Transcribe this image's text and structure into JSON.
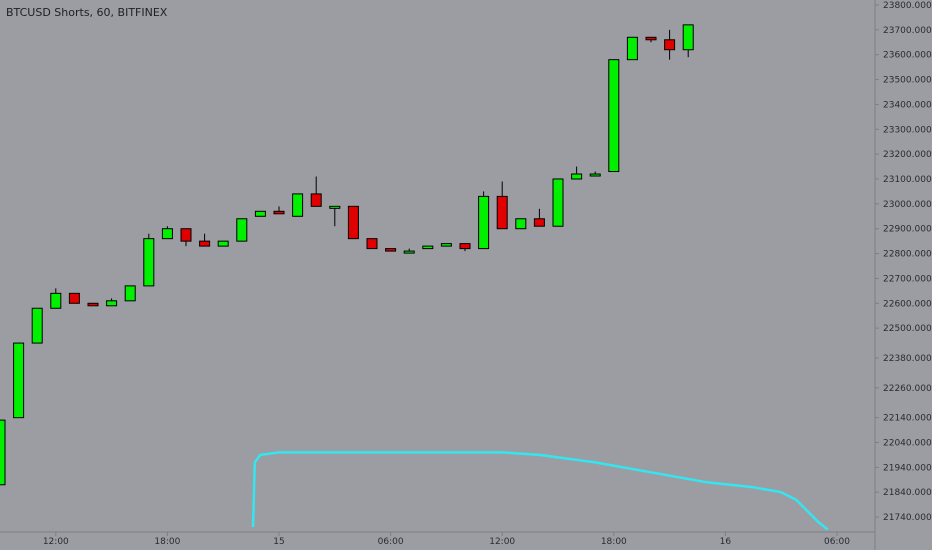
{
  "chart_title": "BTCUSD Shorts, 60, BITFINEX",
  "colors": {
    "background": "#9c9da3",
    "up": "#00f000",
    "down": "#e00000",
    "wick": "#000000",
    "line": "#33e6f0",
    "axis_text": "#2a2b30"
  },
  "chart_data": {
    "type": "candlestick",
    "title": "BTCUSD Shorts, 60, BITFINEX",
    "y_axis": {
      "position": "right",
      "ylim": [
        21680,
        23820
      ],
      "tick_labels": [
        "23800.0000",
        "23700.0000",
        "23600.0000",
        "23500.0000",
        "23400.0000",
        "23300.0000",
        "23200.0000",
        "23100.0000",
        "23000.0000",
        "22900.0000",
        "22800.0000",
        "22700.0000",
        "22600.0000",
        "22500.0000",
        "22380.0000",
        "22260.0000",
        "22140.0000",
        "22040.0000",
        "21940.0000",
        "21840.0000",
        "21740.0000"
      ],
      "tick_values": [
        23800,
        23700,
        23600,
        23500,
        23400,
        23300,
        23200,
        23100,
        23000,
        22900,
        22800,
        22700,
        22600,
        22500,
        22380,
        22260,
        22140,
        22040,
        21940,
        21840,
        21740
      ]
    },
    "x_axis": {
      "tick_labels": [
        "12:00",
        "18:00",
        "15",
        "06:00",
        "12:00",
        "18:00",
        "16",
        "06:00"
      ],
      "tick_index": [
        3.0,
        9.0,
        15.0,
        21.0,
        27.0,
        33.0,
        39.0,
        45.0
      ]
    },
    "candles": [
      {
        "o": 21870,
        "h": 22130,
        "l": 21870,
        "c": 22130
      },
      {
        "o": 22140,
        "h": 22440,
        "l": 22140,
        "c": 22440
      },
      {
        "o": 22440,
        "h": 22580,
        "l": 22440,
        "c": 22580
      },
      {
        "o": 22580,
        "h": 22660,
        "l": 22580,
        "c": 22640
      },
      {
        "o": 22640,
        "h": 22640,
        "l": 22600,
        "c": 22600
      },
      {
        "o": 22600,
        "h": 22600,
        "l": 22590,
        "c": 22590
      },
      {
        "o": 22590,
        "h": 22620,
        "l": 22590,
        "c": 22610
      },
      {
        "o": 22610,
        "h": 22670,
        "l": 22610,
        "c": 22670
      },
      {
        "o": 22670,
        "h": 22880,
        "l": 22670,
        "c": 22860
      },
      {
        "o": 22860,
        "h": 22910,
        "l": 22860,
        "c": 22900
      },
      {
        "o": 22900,
        "h": 22900,
        "l": 22830,
        "c": 22850
      },
      {
        "o": 22850,
        "h": 22880,
        "l": 22830,
        "c": 22830
      },
      {
        "o": 22830,
        "h": 22850,
        "l": 22830,
        "c": 22850
      },
      {
        "o": 22850,
        "h": 22940,
        "l": 22850,
        "c": 22940
      },
      {
        "o": 22950,
        "h": 22970,
        "l": 22950,
        "c": 22970
      },
      {
        "o": 22970,
        "h": 22990,
        "l": 22960,
        "c": 22960
      },
      {
        "o": 22950,
        "h": 23040,
        "l": 22950,
        "c": 23040
      },
      {
        "o": 23040,
        "h": 23110,
        "l": 22990,
        "c": 22990
      },
      {
        "o": 22990,
        "h": 22990,
        "l": 22910,
        "c": 22990
      },
      {
        "o": 22990,
        "h": 22990,
        "l": 22860,
        "c": 22860
      },
      {
        "o": 22860,
        "h": 22860,
        "l": 22820,
        "c": 22820
      },
      {
        "o": 22820,
        "h": 22820,
        "l": 22810,
        "c": 22810
      },
      {
        "o": 22810,
        "h": 22820,
        "l": 22810,
        "c": 22810
      },
      {
        "o": 22820,
        "h": 22830,
        "l": 22820,
        "c": 22830
      },
      {
        "o": 22830,
        "h": 22840,
        "l": 22830,
        "c": 22840
      },
      {
        "o": 22840,
        "h": 22840,
        "l": 22810,
        "c": 22820
      },
      {
        "o": 22820,
        "h": 23050,
        "l": 22820,
        "c": 23030
      },
      {
        "o": 23030,
        "h": 23090,
        "l": 22900,
        "c": 22900
      },
      {
        "o": 22900,
        "h": 22940,
        "l": 22900,
        "c": 22940
      },
      {
        "o": 22940,
        "h": 22980,
        "l": 22910,
        "c": 22910
      },
      {
        "o": 22910,
        "h": 23100,
        "l": 22910,
        "c": 23100
      },
      {
        "o": 23100,
        "h": 23150,
        "l": 23100,
        "c": 23120
      },
      {
        "o": 23120,
        "h": 23130,
        "l": 23120,
        "c": 23120
      },
      {
        "o": 23130,
        "h": 23580,
        "l": 23130,
        "c": 23580
      },
      {
        "o": 23580,
        "h": 23670,
        "l": 23580,
        "c": 23670
      },
      {
        "o": 23670,
        "h": 23670,
        "l": 23650,
        "c": 23660
      },
      {
        "o": 23660,
        "h": 23700,
        "l": 23580,
        "c": 23620
      },
      {
        "o": 23620,
        "h": 23720,
        "l": 23590,
        "c": 23720
      }
    ],
    "line_series": {
      "x_index": [
        13.6,
        13.7,
        14.0,
        15.0,
        17.0,
        20.0,
        24.0,
        27.0,
        29.0,
        32.0,
        35.0,
        38.0,
        40.5,
        42.0,
        42.8,
        44.0,
        44.5
      ],
      "y": [
        21700,
        21960,
        21990,
        22000,
        22000,
        22000,
        22000,
        22000,
        21990,
        21960,
        21920,
        21880,
        21860,
        21840,
        21810,
        21720,
        21690
      ]
    }
  }
}
